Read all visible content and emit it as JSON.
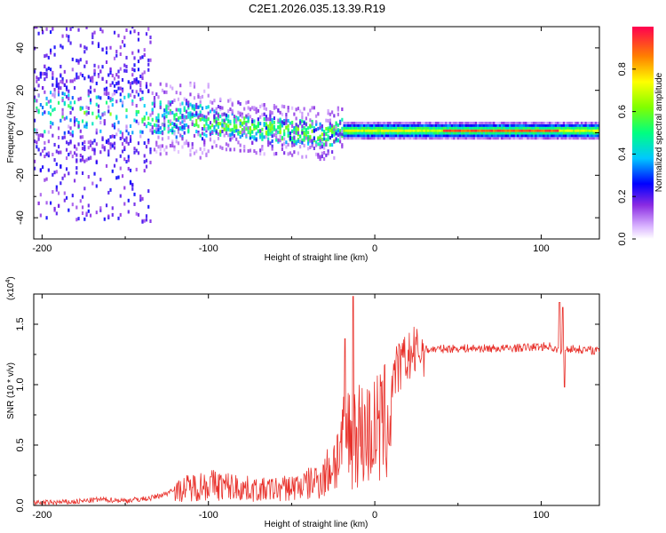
{
  "title": "C2E1.2026.035.13.39.R19",
  "chart_data": [
    {
      "type": "heatmap",
      "name": "spectrogram",
      "xlabel": "Height of straight line (km)",
      "ylabel": "Frequency (Hz)",
      "xlim": [
        -205,
        135
      ],
      "ylim": [
        -50,
        50
      ],
      "x_ticks": [
        -200,
        -100,
        0,
        100
      ],
      "y_ticks": [
        -40,
        -20,
        0,
        20,
        40
      ],
      "x_tick_labels": [
        "-200",
        "-100",
        "0",
        "100"
      ],
      "y_tick_labels": [
        "-40",
        "-20",
        "0",
        "20",
        "40"
      ],
      "colorbar": {
        "label": "Normalized spectral amplitude",
        "range": [
          0,
          1
        ],
        "ticks": [
          0,
          0.2,
          0.4,
          0.6,
          0.8
        ],
        "tick_labels": [
          "0.0",
          "0.2",
          "0.4",
          "0.6",
          "0.8"
        ]
      },
      "band_center_hz": [
        [
          -200,
          9
        ],
        [
          -180,
          9
        ],
        [
          -160,
          9
        ],
        [
          -140,
          8
        ],
        [
          -120,
          6
        ],
        [
          -100,
          5
        ],
        [
          -80,
          3
        ],
        [
          -60,
          1
        ],
        [
          -40,
          0
        ],
        [
          -25,
          -1
        ],
        [
          -20,
          1
        ],
        [
          0,
          1
        ],
        [
          50,
          1
        ],
        [
          100,
          1
        ],
        [
          135,
          1
        ]
      ],
      "notes": "Broad noisy spectrum below -20 km; narrow strong line near 1 Hz above -20 km"
    },
    {
      "type": "line",
      "name": "snr",
      "xlabel": "Height of straight line (km)",
      "ylabel": "SNR (10 * v/v)",
      "y_scale_label": "(x10",
      "y_scale_exponent": "4",
      "xlim": [
        -205,
        135
      ],
      "ylim": [
        0,
        1.75
      ],
      "x_ticks": [
        -200,
        -100,
        0,
        100
      ],
      "y_ticks": [
        0,
        0.5,
        1.0,
        1.5
      ],
      "x_tick_labels": [
        "-200",
        "-100",
        "0",
        "100"
      ],
      "y_tick_labels": [
        "0.0",
        "0.5",
        "1.0",
        "1.5"
      ],
      "color": "#e8302a",
      "envelope": [
        [
          -205,
          0.02
        ],
        [
          -180,
          0.03
        ],
        [
          -165,
          0.05
        ],
        [
          -150,
          0.04
        ],
        [
          -135,
          0.06
        ],
        [
          -125,
          0.1
        ],
        [
          -115,
          0.2
        ],
        [
          -100,
          0.25
        ],
        [
          -85,
          0.22
        ],
        [
          -70,
          0.18
        ],
        [
          -55,
          0.2
        ],
        [
          -40,
          0.25
        ],
        [
          -30,
          0.35
        ],
        [
          -22,
          0.6
        ],
        [
          -18,
          0.75
        ],
        [
          -15,
          0.85
        ],
        [
          -12,
          0.9
        ],
        [
          -8,
          0.85
        ],
        [
          -3,
          0.85
        ],
        [
          2,
          0.9
        ],
        [
          8,
          1.0
        ],
        [
          15,
          1.15
        ],
        [
          22,
          1.25
        ],
        [
          30,
          1.29
        ],
        [
          50,
          1.3
        ],
        [
          80,
          1.3
        ],
        [
          95,
          1.31
        ],
        [
          105,
          1.32
        ],
        [
          110,
          1.28
        ],
        [
          115,
          1.3
        ],
        [
          135,
          1.28
        ]
      ],
      "spikes": [
        [
          -13,
          1.73
        ],
        [
          -18,
          1.38
        ],
        [
          111,
          1.68
        ],
        [
          113,
          1.64
        ],
        [
          114,
          0.98
        ]
      ]
    }
  ]
}
